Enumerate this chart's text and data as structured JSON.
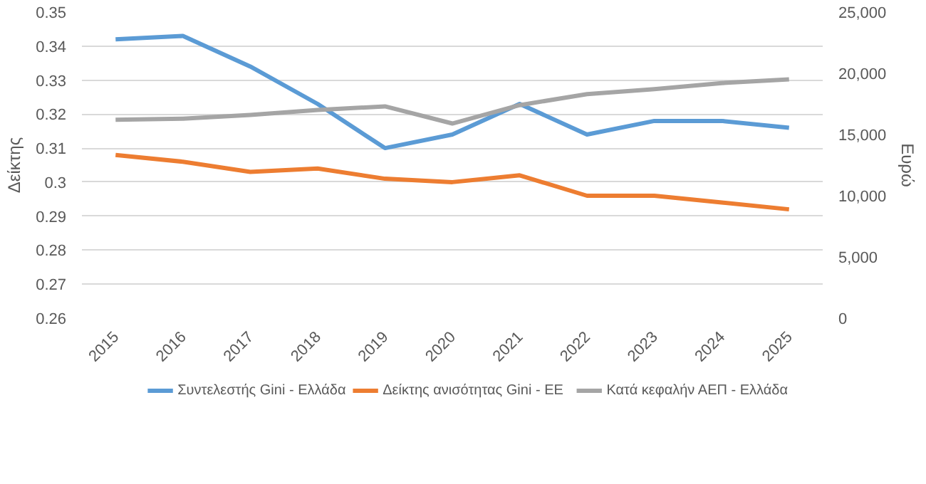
{
  "chart_data": {
    "type": "line",
    "ylabel": "Δείκτης",
    "y2label": "Ευρώ",
    "categories": [
      "2015",
      "2016",
      "2017",
      "2018",
      "2019",
      "2020",
      "2021",
      "2022",
      "2023",
      "2024",
      "2025"
    ],
    "series": [
      {
        "name": "Συντελεστής Gini - Ελλάδα",
        "color": "#5b9bd5",
        "values": [
          0.342,
          0.343,
          0.334,
          0.323,
          0.31,
          0.314,
          0.323,
          0.314,
          0.318,
          0.318,
          0.316
        ]
      },
      {
        "name": "Δείκτης ανισότητας Gini - ΕΕ",
        "color": "#ed7d31",
        "values": [
          0.308,
          0.306,
          0.303,
          0.304,
          0.301,
          0.3,
          0.302,
          0.296,
          0.296,
          0.294,
          0.292
        ]
      },
      {
        "name": "Κατά κεφαλήν ΑΕΠ - Ελλάδα",
        "color": "#a5a5a5",
        "axis": "y2",
        "values": [
          16200,
          16300,
          16600,
          17000,
          17300,
          15900,
          17400,
          18300,
          18700,
          19200,
          19500
        ]
      }
    ],
    "ylim": [
      0.26,
      0.35
    ],
    "yticks": [
      0.26,
      0.27,
      0.28,
      0.29,
      {
        "value": 0.3,
        "label": "0.3"
      },
      0.31,
      0.32,
      0.33,
      0.34,
      0.35
    ],
    "y2lim": [
      0,
      25000
    ],
    "y2ticks": [
      0,
      {
        "value": 5000,
        "label": "5,000"
      },
      {
        "value": 10000,
        "label": "10,000"
      },
      {
        "value": 15000,
        "label": "15,000"
      },
      {
        "value": 20000,
        "label": "20,000"
      },
      {
        "value": 25000,
        "label": "25,000"
      }
    ],
    "grid": "y",
    "legend": "bottom",
    "marker": "none",
    "line_style": "solid"
  }
}
